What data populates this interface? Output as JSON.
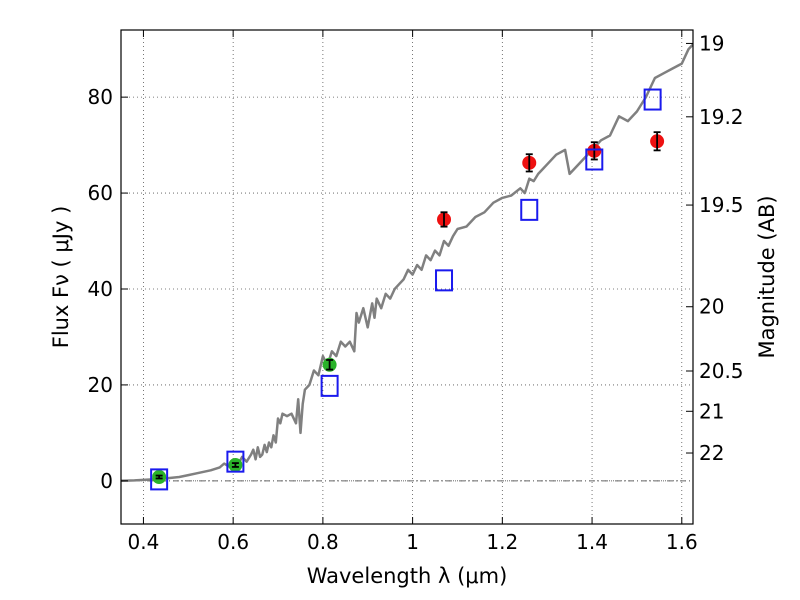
{
  "chart_data": {
    "type": "scatter",
    "title": "",
    "xlabel": "Wavelength  λ (μm)",
    "ylabel": "Flux  Fν  ( μJy )",
    "y2label": "Magnitude (AB)",
    "xlim": [
      0.35,
      1.625
    ],
    "ylim": [
      -9,
      94
    ],
    "grid": true,
    "xticks": [
      {
        "value": 0.4,
        "label": "0.4"
      },
      {
        "value": 0.6,
        "label": "0.6"
      },
      {
        "value": 0.8,
        "label": "0.8"
      },
      {
        "value": 1.0,
        "label": "1"
      },
      {
        "value": 1.2,
        "label": "1.2"
      },
      {
        "value": 1.4,
        "label": "1.4"
      },
      {
        "value": 1.6,
        "label": "1.6"
      }
    ],
    "yticks": [
      {
        "value": 0,
        "label": "0"
      },
      {
        "value": 20,
        "label": "20"
      },
      {
        "value": 40,
        "label": "40"
      },
      {
        "value": 60,
        "label": "60"
      },
      {
        "value": 80,
        "label": "80"
      }
    ],
    "y2ticks": [
      {
        "flux": 91.2,
        "label": "19"
      },
      {
        "flux": 75.9,
        "label": "19.2"
      },
      {
        "flux": 57.5,
        "label": "19.5"
      },
      {
        "flux": 36.3,
        "label": "20"
      },
      {
        "flux": 22.9,
        "label": "20.5"
      },
      {
        "flux": 14.5,
        "label": "21"
      },
      {
        "flux": 5.8,
        "label": "22"
      }
    ],
    "model_spectrum": {
      "color": "#808080",
      "x": [
        0.35,
        0.38,
        0.4,
        0.42,
        0.45,
        0.48,
        0.5,
        0.52,
        0.55,
        0.57,
        0.58,
        0.59,
        0.6,
        0.61,
        0.62,
        0.63,
        0.64,
        0.645,
        0.65,
        0.655,
        0.66,
        0.665,
        0.67,
        0.675,
        0.68,
        0.685,
        0.69,
        0.695,
        0.7,
        0.705,
        0.71,
        0.72,
        0.73,
        0.74,
        0.745,
        0.75,
        0.755,
        0.76,
        0.77,
        0.78,
        0.79,
        0.8,
        0.81,
        0.82,
        0.83,
        0.84,
        0.85,
        0.86,
        0.87,
        0.875,
        0.88,
        0.89,
        0.9,
        0.91,
        0.915,
        0.92,
        0.93,
        0.94,
        0.95,
        0.96,
        0.97,
        0.98,
        0.99,
        1.0,
        1.01,
        1.02,
        1.03,
        1.04,
        1.05,
        1.06,
        1.07,
        1.08,
        1.09,
        1.1,
        1.12,
        1.14,
        1.16,
        1.18,
        1.2,
        1.22,
        1.24,
        1.25,
        1.26,
        1.27,
        1.28,
        1.29,
        1.3,
        1.32,
        1.34,
        1.35,
        1.36,
        1.38,
        1.4,
        1.42,
        1.44,
        1.46,
        1.48,
        1.5,
        1.52,
        1.54,
        1.56,
        1.58,
        1.6,
        1.615,
        1.625
      ],
      "y": [
        0,
        0.1,
        0.2,
        0.3,
        0.5,
        0.8,
        1.2,
        1.6,
        2.2,
        2.8,
        3.6,
        3.0,
        4.2,
        3.2,
        5.0,
        4.0,
        5.5,
        6.5,
        4.5,
        7.0,
        5.0,
        5.5,
        7.5,
        6.0,
        8.0,
        7.0,
        9.5,
        8.0,
        13.0,
        12.0,
        14.0,
        13.5,
        14.0,
        12.0,
        17.0,
        10.0,
        16.0,
        19.0,
        20.0,
        23.0,
        22.0,
        26.0,
        24.0,
        27.0,
        26.0,
        29.0,
        28.0,
        29.0,
        27.0,
        35.0,
        33.0,
        36.0,
        32.0,
        37.0,
        34.0,
        38.0,
        36.0,
        39.0,
        38.0,
        40.0,
        41.0,
        42.0,
        44.0,
        43.0,
        45.0,
        44.0,
        47.0,
        46.0,
        48.0,
        47.0,
        50.0,
        49.0,
        51.0,
        52.5,
        53.0,
        55.0,
        56.0,
        58.0,
        59.0,
        59.5,
        61.0,
        60.0,
        63.0,
        62.5,
        64.0,
        65.0,
        66.0,
        68.0,
        69.0,
        64.0,
        65.0,
        67.0,
        69.0,
        71.0,
        72.0,
        76.0,
        75.0,
        77.0,
        80.0,
        84.0,
        85.0,
        86.0,
        87.0,
        90.0,
        91.0
      ]
    },
    "series": [
      {
        "marker": "circle",
        "color": "#2ab32a",
        "x": [
          0.435,
          0.605,
          0.815
        ],
        "y": [
          0.8,
          3.3,
          24.2
        ],
        "err": [
          0.3,
          0.4,
          1.0
        ]
      },
      {
        "marker": "circle",
        "color": "#ee1111",
        "x": [
          1.07,
          1.26,
          1.405,
          1.545
        ],
        "y": [
          54.5,
          66.3,
          68.8,
          70.8
        ],
        "err": [
          1.5,
          1.8,
          1.8,
          1.9
        ]
      },
      {
        "marker": "open-square",
        "color": "#1a1aee",
        "x": [
          0.435,
          0.605,
          0.815,
          1.07,
          1.26,
          1.405,
          1.535
        ],
        "y": [
          0.3,
          4.0,
          19.8,
          41.8,
          56.5,
          67.0,
          79.5
        ]
      }
    ],
    "reference_line": {
      "y": 0,
      "style": "dash-dot",
      "color": "#666666"
    }
  }
}
